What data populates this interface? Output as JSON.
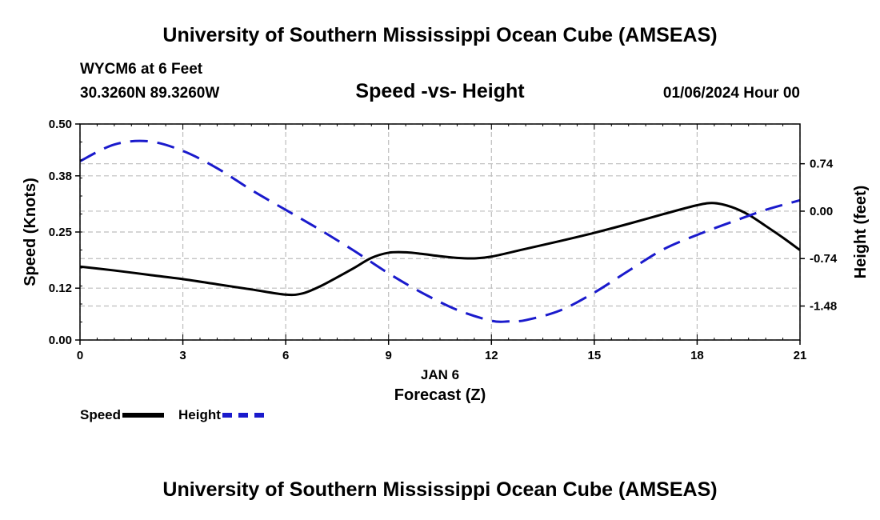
{
  "header": {
    "title": "University of Southern Mississippi Ocean Cube (AMSEAS)",
    "station": "WYCM6 at 6 Feet",
    "coords": "30.3260N  89.3260W",
    "subtitle": "Speed -vs- Height",
    "datetime": "01/06/2024 Hour 00"
  },
  "footer": {
    "title": "University of Southern Mississippi Ocean Cube (AMSEAS)"
  },
  "legend": {
    "speed_label": "Speed",
    "height_label": "Height"
  },
  "colors": {
    "speed": "#000000",
    "height": "#1a1acc",
    "grid": "#bdbdbd"
  },
  "chart_data": {
    "type": "line",
    "title": "Speed -vs- Height",
    "xlabel": "Forecast (Z)",
    "xlabel_date": "JAN 6",
    "ylabel_left": "Speed (Knots)",
    "ylabel_right": "Height (feet)",
    "xlim": [
      0,
      21
    ],
    "ylim_left": [
      0,
      0.5
    ],
    "ylim_right": [
      -2.01,
      1.36
    ],
    "x_ticks": [
      "0",
      "3",
      "6",
      "9",
      "12",
      "15",
      "18",
      "21"
    ],
    "y_left_ticks": [
      "0.00",
      "0.12",
      "0.25",
      "0.38",
      "0.50"
    ],
    "y_right_ticks": [
      "-1.48",
      "-0.74",
      "0.00",
      "0.74"
    ],
    "grid": true,
    "legend_position": "bottom-left",
    "series": [
      {
        "name": "Speed",
        "axis": "left",
        "style": "solid",
        "x": [
          0,
          1,
          2,
          3,
          4,
          5,
          6,
          6.5,
          7,
          7.5,
          8,
          8.5,
          9,
          9.5,
          10,
          10.5,
          11,
          11.5,
          12,
          13,
          14,
          15,
          16,
          17,
          18,
          18.5,
          19,
          19.5,
          20,
          20.5,
          21
        ],
        "values": [
          0.17,
          0.161,
          0.151,
          0.141,
          0.129,
          0.117,
          0.105,
          0.108,
          0.124,
          0.145,
          0.167,
          0.19,
          0.202,
          0.203,
          0.199,
          0.194,
          0.19,
          0.189,
          0.193,
          0.211,
          0.229,
          0.248,
          0.269,
          0.291,
          0.312,
          0.317,
          0.308,
          0.29,
          0.264,
          0.237,
          0.208
        ]
      },
      {
        "name": "Height",
        "axis": "right",
        "style": "dashed",
        "x": [
          0,
          1,
          2,
          3,
          4,
          5,
          6,
          7,
          8,
          9,
          10,
          11,
          12,
          12.5,
          13,
          14,
          15,
          16,
          17,
          18,
          19,
          20,
          21
        ],
        "values": [
          0.78,
          1.04,
          1.09,
          0.94,
          0.67,
          0.33,
          0.02,
          -0.29,
          -0.62,
          -0.97,
          -1.28,
          -1.54,
          -1.71,
          -1.72,
          -1.7,
          -1.55,
          -1.27,
          -0.93,
          -0.6,
          -0.37,
          -0.17,
          0.02,
          0.17
        ]
      }
    ]
  }
}
